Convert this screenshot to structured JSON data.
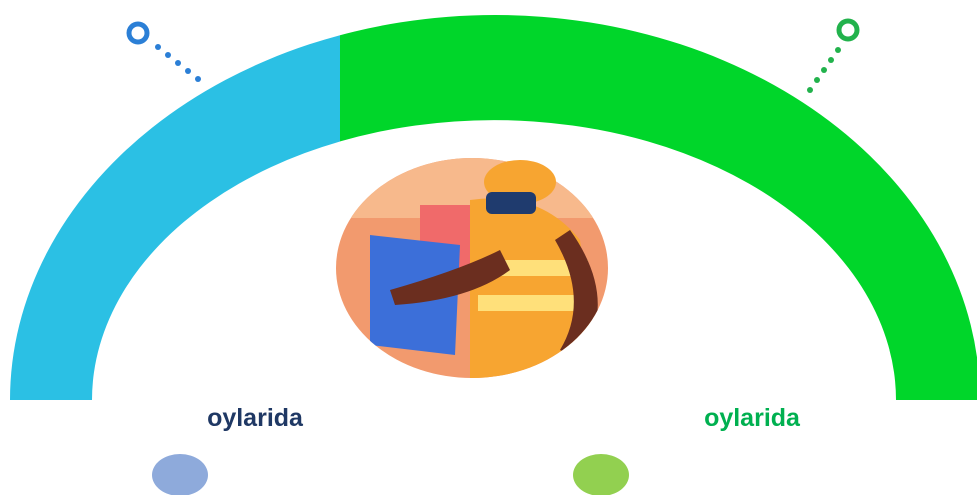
{
  "labels": {
    "left": "oylarida",
    "right": "oylarida"
  }
}
